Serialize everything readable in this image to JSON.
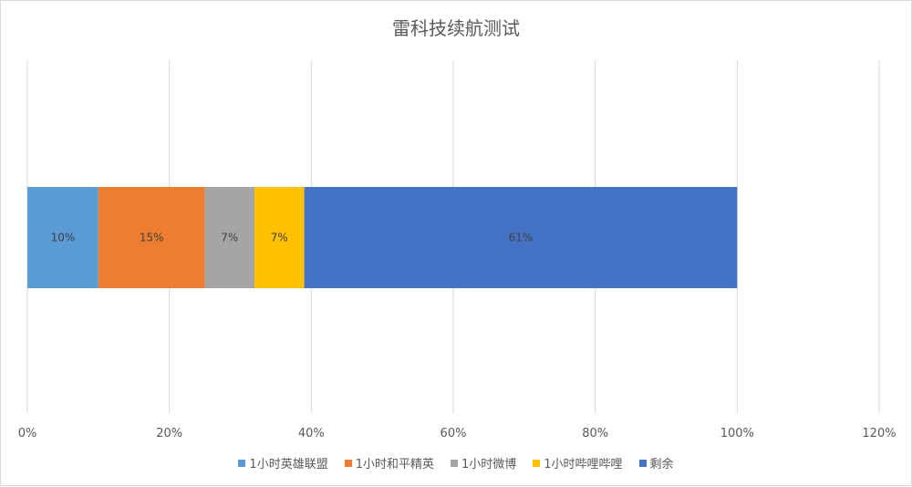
{
  "chart_data": {
    "type": "bar",
    "orientation": "horizontal",
    "stacked": true,
    "title": "雷科技续航测试",
    "xlim": [
      0,
      1.2
    ],
    "x_ticks": [
      "0%",
      "20%",
      "40%",
      "60%",
      "80%",
      "100%",
      "120%"
    ],
    "grid": true,
    "legend_position": "bottom",
    "series": [
      {
        "name": "1小时英雄联盟",
        "value": 0.1,
        "label": "10%",
        "color": "#5b9bd5"
      },
      {
        "name": "1小时和平精英",
        "value": 0.15,
        "label": "15%",
        "color": "#ed7d31"
      },
      {
        "name": "1小时微博",
        "value": 0.07,
        "label": "7%",
        "color": "#a5a5a5"
      },
      {
        "name": "1小时哔哩哔哩",
        "value": 0.07,
        "label": "7%",
        "color": "#ffc000"
      },
      {
        "name": "剩余",
        "value": 0.61,
        "label": "61%",
        "color": "#4472c4"
      }
    ]
  }
}
